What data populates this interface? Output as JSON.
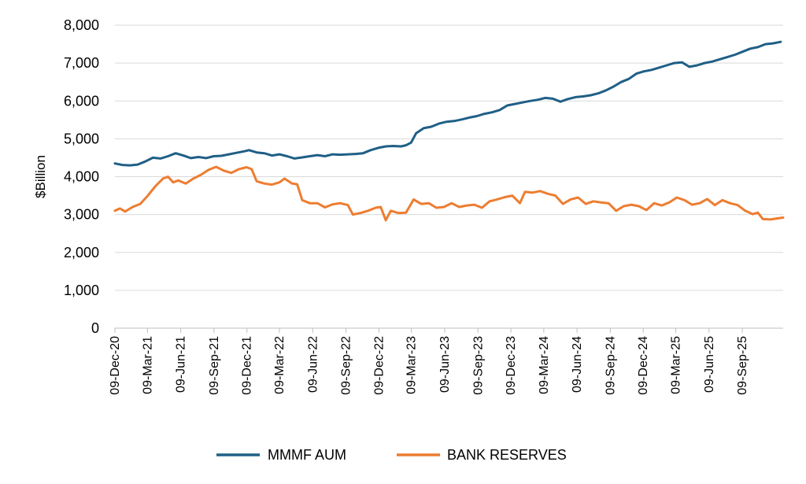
{
  "chart_data": {
    "type": "line",
    "title": "",
    "xlabel": "",
    "ylabel": "$Billion",
    "ylim": [
      0,
      8000
    ],
    "yticks": [
      0,
      1000,
      2000,
      3000,
      4000,
      5000,
      6000,
      7000,
      8000
    ],
    "ytick_labels": [
      "0",
      "1,000",
      "2,000",
      "3,000",
      "4,000",
      "5,000",
      "6,000",
      "7,000",
      "8,000"
    ],
    "xlim": [
      "2020-12-09",
      "2025-12-31"
    ],
    "xticks": [
      "2020-12-09",
      "2021-03-09",
      "2021-06-09",
      "2021-09-09",
      "2021-12-09",
      "2022-03-09",
      "2022-06-09",
      "2022-09-09",
      "2022-12-09",
      "2023-03-09",
      "2023-06-09",
      "2023-09-09",
      "2023-12-09",
      "2024-03-09",
      "2024-06-09",
      "2024-09-09",
      "2024-12-09",
      "2025-03-09",
      "2025-06-09",
      "2025-09-09"
    ],
    "xtick_labels": [
      "09-Dec-20",
      "09-Mar-21",
      "09-Jun-21",
      "09-Sep-21",
      "09-Dec-21",
      "09-Mar-22",
      "09-Jun-22",
      "09-Sep-22",
      "09-Dec-22",
      "09-Mar-23",
      "09-Jun-23",
      "09-Sep-23",
      "09-Dec-23",
      "09-Mar-24",
      "09-Jun-24",
      "09-Sep-24",
      "09-Dec-24",
      "09-Mar-25",
      "09-Jun-25",
      "09-Sep-25"
    ],
    "grid": "horizontal",
    "legend": "bottom-center",
    "series": [
      {
        "name": "MMMF AUM",
        "color": "#1f5f86",
        "points": [
          [
            "2020-12-09",
            4350
          ],
          [
            "2020-12-30",
            4310
          ],
          [
            "2021-01-20",
            4300
          ],
          [
            "2021-02-10",
            4320
          ],
          [
            "2021-03-03",
            4400
          ],
          [
            "2021-03-24",
            4500
          ],
          [
            "2021-04-14",
            4480
          ],
          [
            "2021-05-05",
            4540
          ],
          [
            "2021-05-26",
            4620
          ],
          [
            "2021-06-16",
            4560
          ],
          [
            "2021-07-07",
            4490
          ],
          [
            "2021-07-28",
            4520
          ],
          [
            "2021-08-18",
            4490
          ],
          [
            "2021-09-08",
            4540
          ],
          [
            "2021-09-29",
            4550
          ],
          [
            "2021-10-20",
            4590
          ],
          [
            "2021-11-10",
            4630
          ],
          [
            "2021-12-01",
            4670
          ],
          [
            "2021-12-15",
            4700
          ],
          [
            "2022-01-05",
            4640
          ],
          [
            "2022-01-26",
            4620
          ],
          [
            "2022-02-16",
            4560
          ],
          [
            "2022-03-09",
            4590
          ],
          [
            "2022-03-30",
            4540
          ],
          [
            "2022-04-20",
            4480
          ],
          [
            "2022-05-11",
            4510
          ],
          [
            "2022-06-01",
            4540
          ],
          [
            "2022-06-22",
            4570
          ],
          [
            "2022-07-13",
            4540
          ],
          [
            "2022-08-03",
            4590
          ],
          [
            "2022-08-24",
            4580
          ],
          [
            "2022-09-14",
            4590
          ],
          [
            "2022-10-05",
            4600
          ],
          [
            "2022-10-26",
            4620
          ],
          [
            "2022-11-16",
            4700
          ],
          [
            "2022-12-07",
            4760
          ],
          [
            "2022-12-28",
            4800
          ],
          [
            "2023-01-18",
            4810
          ],
          [
            "2023-02-08",
            4800
          ],
          [
            "2023-02-22",
            4830
          ],
          [
            "2023-03-08",
            4900
          ],
          [
            "2023-03-22",
            5150
          ],
          [
            "2023-04-12",
            5280
          ],
          [
            "2023-05-03",
            5320
          ],
          [
            "2023-05-24",
            5400
          ],
          [
            "2023-06-14",
            5450
          ],
          [
            "2023-07-05",
            5470
          ],
          [
            "2023-07-26",
            5510
          ],
          [
            "2023-08-16",
            5560
          ],
          [
            "2023-09-06",
            5600
          ],
          [
            "2023-09-27",
            5660
          ],
          [
            "2023-10-18",
            5700
          ],
          [
            "2023-11-08",
            5760
          ],
          [
            "2023-11-29",
            5880
          ],
          [
            "2023-12-20",
            5920
          ],
          [
            "2024-01-10",
            5960
          ],
          [
            "2024-01-31",
            6000
          ],
          [
            "2024-02-21",
            6030
          ],
          [
            "2024-03-13",
            6080
          ],
          [
            "2024-04-03",
            6060
          ],
          [
            "2024-04-24",
            5980
          ],
          [
            "2024-05-15",
            6050
          ],
          [
            "2024-06-05",
            6100
          ],
          [
            "2024-06-26",
            6120
          ],
          [
            "2024-07-17",
            6150
          ],
          [
            "2024-08-07",
            6200
          ],
          [
            "2024-08-28",
            6280
          ],
          [
            "2024-09-18",
            6380
          ],
          [
            "2024-10-09",
            6500
          ],
          [
            "2024-10-30",
            6580
          ],
          [
            "2024-11-20",
            6720
          ],
          [
            "2024-12-11",
            6780
          ],
          [
            "2025-01-01",
            6820
          ],
          [
            "2025-01-22",
            6880
          ],
          [
            "2025-02-12",
            6940
          ],
          [
            "2025-03-05",
            7000
          ],
          [
            "2025-03-26",
            7020
          ],
          [
            "2025-04-16",
            6900
          ],
          [
            "2025-05-07",
            6940
          ],
          [
            "2025-05-28",
            7000
          ],
          [
            "2025-06-18",
            7040
          ],
          [
            "2025-07-09",
            7100
          ],
          [
            "2025-07-30",
            7160
          ],
          [
            "2025-08-20",
            7220
          ],
          [
            "2025-09-10",
            7300
          ],
          [
            "2025-10-01",
            7380
          ],
          [
            "2025-10-22",
            7420
          ],
          [
            "2025-11-12",
            7500
          ],
          [
            "2025-12-03",
            7520
          ],
          [
            "2025-12-24",
            7560
          ]
        ]
      },
      {
        "name": "BANK RESERVES",
        "color": "#ed7d31",
        "points": [
          [
            "2020-12-09",
            3100
          ],
          [
            "2020-12-23",
            3160
          ],
          [
            "2021-01-06",
            3080
          ],
          [
            "2021-01-27",
            3200
          ],
          [
            "2021-02-17",
            3280
          ],
          [
            "2021-03-10",
            3500
          ],
          [
            "2021-03-31",
            3750
          ],
          [
            "2021-04-21",
            3950
          ],
          [
            "2021-05-05",
            4000
          ],
          [
            "2021-05-19",
            3850
          ],
          [
            "2021-06-02",
            3900
          ],
          [
            "2021-06-23",
            3820
          ],
          [
            "2021-07-14",
            3950
          ],
          [
            "2021-08-04",
            4050
          ],
          [
            "2021-08-25",
            4180
          ],
          [
            "2021-09-15",
            4260
          ],
          [
            "2021-10-06",
            4160
          ],
          [
            "2021-10-27",
            4100
          ],
          [
            "2021-11-17",
            4200
          ],
          [
            "2021-12-08",
            4250
          ],
          [
            "2021-12-22",
            4200
          ],
          [
            "2022-01-05",
            3880
          ],
          [
            "2022-01-26",
            3820
          ],
          [
            "2022-02-16",
            3790
          ],
          [
            "2022-03-09",
            3850
          ],
          [
            "2022-03-23",
            3950
          ],
          [
            "2022-04-13",
            3820
          ],
          [
            "2022-04-27",
            3800
          ],
          [
            "2022-05-11",
            3380
          ],
          [
            "2022-06-01",
            3300
          ],
          [
            "2022-06-22",
            3300
          ],
          [
            "2022-07-13",
            3190
          ],
          [
            "2022-08-03",
            3270
          ],
          [
            "2022-08-24",
            3300
          ],
          [
            "2022-09-14",
            3250
          ],
          [
            "2022-09-28",
            3000
          ],
          [
            "2022-10-19",
            3040
          ],
          [
            "2022-11-09",
            3100
          ],
          [
            "2022-11-30",
            3180
          ],
          [
            "2022-12-14",
            3200
          ],
          [
            "2022-12-28",
            2850
          ],
          [
            "2023-01-11",
            3100
          ],
          [
            "2023-02-01",
            3040
          ],
          [
            "2023-02-22",
            3050
          ],
          [
            "2023-03-15",
            3400
          ],
          [
            "2023-04-05",
            3280
          ],
          [
            "2023-04-26",
            3300
          ],
          [
            "2023-05-17",
            3180
          ],
          [
            "2023-06-07",
            3200
          ],
          [
            "2023-06-28",
            3300
          ],
          [
            "2023-07-19",
            3200
          ],
          [
            "2023-08-09",
            3240
          ],
          [
            "2023-08-30",
            3260
          ],
          [
            "2023-09-20",
            3180
          ],
          [
            "2023-10-11",
            3350
          ],
          [
            "2023-11-01",
            3400
          ],
          [
            "2023-11-22",
            3460
          ],
          [
            "2023-12-13",
            3500
          ],
          [
            "2024-01-03",
            3300
          ],
          [
            "2024-01-17",
            3600
          ],
          [
            "2024-02-07",
            3580
          ],
          [
            "2024-02-28",
            3620
          ],
          [
            "2024-03-20",
            3550
          ],
          [
            "2024-04-10",
            3500
          ],
          [
            "2024-05-01",
            3280
          ],
          [
            "2024-05-22",
            3400
          ],
          [
            "2024-06-12",
            3450
          ],
          [
            "2024-07-03",
            3280
          ],
          [
            "2024-07-24",
            3350
          ],
          [
            "2024-08-14",
            3320
          ],
          [
            "2024-09-04",
            3300
          ],
          [
            "2024-09-25",
            3100
          ],
          [
            "2024-10-16",
            3220
          ],
          [
            "2024-11-06",
            3260
          ],
          [
            "2024-11-27",
            3220
          ],
          [
            "2024-12-18",
            3120
          ],
          [
            "2025-01-08",
            3300
          ],
          [
            "2025-01-29",
            3240
          ],
          [
            "2025-02-19",
            3320
          ],
          [
            "2025-03-12",
            3450
          ],
          [
            "2025-04-02",
            3380
          ],
          [
            "2025-04-23",
            3260
          ],
          [
            "2025-05-14",
            3300
          ],
          [
            "2025-06-04",
            3410
          ],
          [
            "2025-06-25",
            3250
          ],
          [
            "2025-07-16",
            3380
          ],
          [
            "2025-08-06",
            3300
          ],
          [
            "2025-08-27",
            3250
          ],
          [
            "2025-09-17",
            3100
          ],
          [
            "2025-10-08",
            3010
          ],
          [
            "2025-10-22",
            3050
          ],
          [
            "2025-11-05",
            2880
          ],
          [
            "2025-11-26",
            2870
          ],
          [
            "2025-12-17",
            2900
          ],
          [
            "2025-12-31",
            2920
          ]
        ]
      }
    ]
  }
}
